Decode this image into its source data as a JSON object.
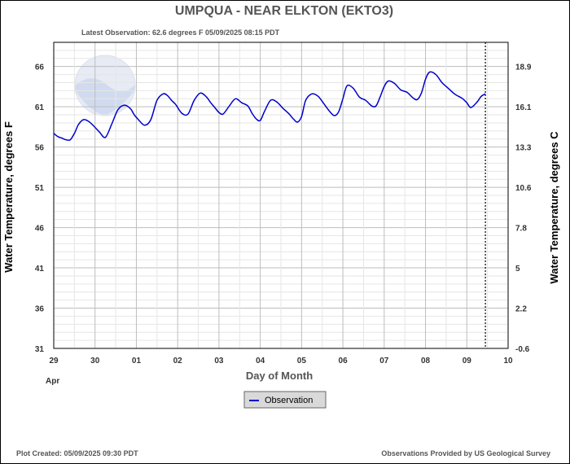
{
  "chart_data": {
    "type": "line",
    "title": "UMPQUA - NEAR ELKTON  (EKTO3)",
    "subtitle": "Latest Observation: 62.6 degrees F  05/09/2025 08:15 PDT",
    "xlabel": "Day of Month",
    "ylabel": "Water Temperature, degrees F",
    "y2label": "Water Temperature, degrees C",
    "x_ticks": [
      "29",
      "30",
      "01",
      "02",
      "03",
      "04",
      "05",
      "06",
      "07",
      "08",
      "09",
      "10"
    ],
    "x_month_label": "Apr",
    "ylim": [
      31,
      69
    ],
    "y_ticks": [
      31,
      36,
      41,
      46,
      51,
      56,
      61,
      66
    ],
    "y2_ticks": [
      "-0.6",
      "2.2",
      "5",
      "7.8",
      "10.6",
      "13.3",
      "16.1",
      "18.9"
    ],
    "xlim_days": [
      0,
      11
    ],
    "latest_observation_day": 10.45,
    "grid": true,
    "legend": "bottom-center",
    "series": [
      {
        "name": "Observation",
        "color": "#0000cc",
        "x": [
          0.0,
          0.1,
          0.2,
          0.3,
          0.4,
          0.5,
          0.6,
          0.72,
          0.84,
          0.95,
          1.1,
          1.25,
          1.4,
          1.55,
          1.7,
          1.85,
          1.95,
          2.05,
          2.2,
          2.35,
          2.5,
          2.65,
          2.75,
          2.85,
          2.95,
          3.1,
          3.25,
          3.4,
          3.55,
          3.7,
          3.8,
          3.9,
          4.0,
          4.1,
          4.25,
          4.4,
          4.55,
          4.7,
          4.8,
          4.9,
          5.0,
          5.1,
          5.25,
          5.4,
          5.55,
          5.7,
          5.8,
          5.9,
          6.0,
          6.1,
          6.25,
          6.4,
          6.55,
          6.7,
          6.8,
          6.9,
          7.0,
          7.1,
          7.25,
          7.4,
          7.55,
          7.7,
          7.8,
          7.9,
          8.0,
          8.1,
          8.25,
          8.4,
          8.55,
          8.7,
          8.8,
          8.9,
          9.0,
          9.1,
          9.25,
          9.4,
          9.55,
          9.7,
          9.8,
          9.9,
          10.0,
          10.1,
          10.25,
          10.35,
          10.45
        ],
        "values": [
          57.7,
          57.3,
          57.1,
          56.9,
          56.9,
          57.7,
          58.8,
          59.4,
          59.2,
          58.7,
          57.9,
          57.2,
          58.8,
          60.6,
          61.2,
          60.8,
          60.0,
          59.4,
          58.7,
          59.4,
          61.8,
          62.6,
          62.4,
          61.8,
          61.3,
          60.2,
          60.1,
          61.8,
          62.7,
          62.2,
          61.5,
          60.9,
          60.3,
          60.1,
          61.1,
          62.0,
          61.5,
          61.1,
          60.2,
          59.5,
          59.3,
          60.4,
          61.8,
          61.6,
          60.8,
          60.1,
          59.5,
          59.1,
          59.8,
          61.8,
          62.6,
          62.3,
          61.3,
          60.3,
          59.9,
          60.4,
          62.0,
          63.6,
          63.3,
          62.2,
          61.8,
          61.1,
          61.1,
          62.2,
          63.5,
          64.2,
          63.9,
          63.1,
          62.8,
          62.1,
          61.9,
          62.7,
          64.4,
          65.3,
          65.0,
          64.0,
          63.3,
          62.6,
          62.3,
          62.0,
          61.5,
          60.9,
          61.6,
          62.3,
          62.6
        ]
      }
    ],
    "footer_left": "Plot Created: 05/09/2025 09:30 PDT",
    "footer_right": "Observations Provided by US Geological Survey",
    "watermark": "noaa-logo"
  }
}
